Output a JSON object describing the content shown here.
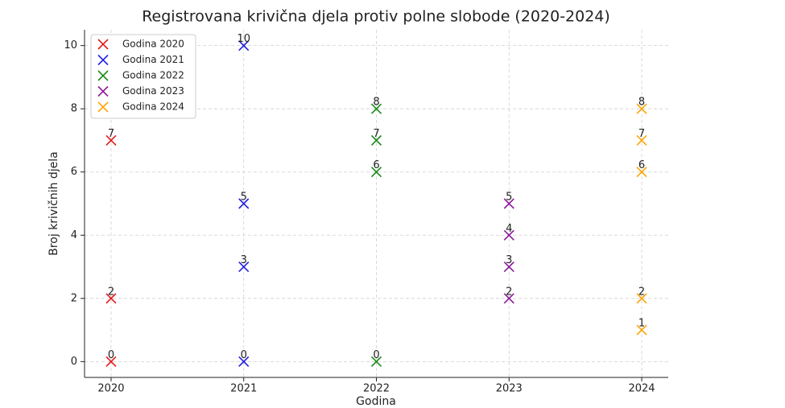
{
  "chart_data": {
    "type": "scatter",
    "title": "Registrovana krivična djela protiv polne slobode (2020-2024)",
    "x_label": "Godina",
    "y_label": "Broj krivičnih djela",
    "series": [
      {
        "name": "Godina 2020",
        "color": "#e41a1c",
        "x": [
          2020,
          2020,
          2020
        ],
        "values": [
          0,
          2,
          7
        ]
      },
      {
        "name": "Godina 2021",
        "color": "#1f1fe0",
        "x": [
          2021,
          2021,
          2021,
          2021
        ],
        "values": [
          0,
          3,
          5,
          10
        ]
      },
      {
        "name": "Godina 2022",
        "color": "#1a8a1a",
        "x": [
          2022,
          2022,
          2022,
          2022
        ],
        "values": [
          0,
          6,
          7,
          8
        ]
      },
      {
        "name": "Godina 2023",
        "color": "#8b1a9a",
        "x": [
          2023,
          2023,
          2023,
          2023
        ],
        "values": [
          2,
          3,
          4,
          5
        ]
      },
      {
        "name": "Godina 2024",
        "color": "#ffa500",
        "x": [
          2024,
          2024,
          2024,
          2024,
          2024
        ],
        "values": [
          1,
          2,
          6,
          7,
          8
        ]
      }
    ],
    "xlim": [
      2019.8,
      2024.2
    ],
    "xticks": [
      2020,
      2021,
      2022,
      2023,
      2024
    ],
    "ylim": [
      -0.5,
      10.5
    ],
    "yticks": [
      0,
      2,
      4,
      6,
      8,
      10
    ],
    "grid": true,
    "legend": "upper-left",
    "marker": "x"
  }
}
